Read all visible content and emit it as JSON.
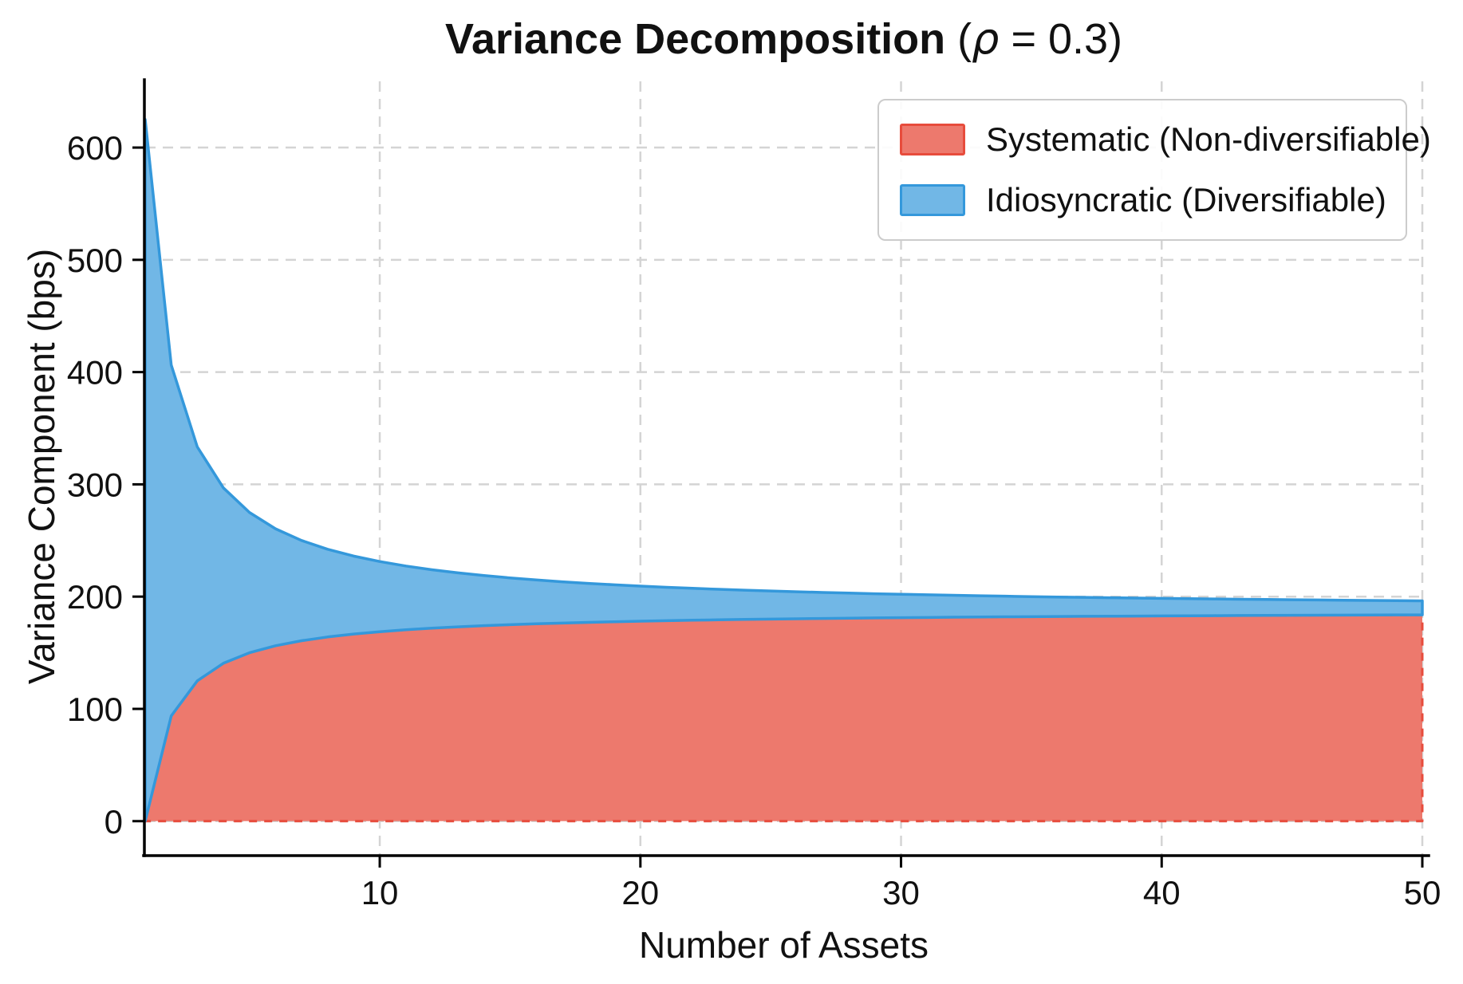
{
  "figure": {
    "title": {
      "main": "Variance Decomposition",
      "open": " (",
      "rho": "ρ",
      "tail": " = 0.3)"
    },
    "xlabel": "Number of Assets",
    "ylabel": "Variance Component (bps)"
  },
  "chart_data": {
    "type": "area",
    "stacked": true,
    "title": "Variance Decomposition (ρ = 0.3)",
    "rho": 0.3,
    "xlabel": "Number of Assets",
    "ylabel": "Variance Component (bps)",
    "xlim": [
      1,
      50
    ],
    "ylim": [
      -30,
      659
    ],
    "x_ticks": [
      10,
      20,
      30,
      40,
      50
    ],
    "y_ticks": [
      0,
      100,
      200,
      300,
      400,
      500,
      600
    ],
    "grid": {
      "show": true,
      "color": "#d4d4d4",
      "style": "dashed"
    },
    "legend_position": "upper right",
    "x": [
      1,
      2,
      3,
      4,
      5,
      6,
      7,
      8,
      9,
      10,
      11,
      12,
      13,
      14,
      15,
      16,
      17,
      18,
      19,
      20,
      21,
      22,
      23,
      24,
      25,
      26,
      27,
      28,
      29,
      30,
      31,
      32,
      33,
      34,
      35,
      36,
      37,
      38,
      39,
      40,
      41,
      42,
      43,
      44,
      45,
      46,
      47,
      48,
      49,
      50
    ],
    "series": [
      {
        "key": "systematic",
        "name": "Systematic (Non-diversifiable)",
        "fill": "#ED796D",
        "edge": "#E74C3C",
        "edge_style": "dashed",
        "values": [
          0,
          93.75,
          125,
          140.63,
          150,
          156.25,
          160.71,
          164.06,
          166.67,
          168.75,
          170.45,
          171.88,
          173.08,
          174.11,
          175,
          175.78,
          176.47,
          177.08,
          177.63,
          178.13,
          178.57,
          178.98,
          179.35,
          179.69,
          180,
          180.29,
          180.56,
          180.8,
          181.03,
          181.25,
          181.45,
          181.64,
          181.82,
          181.99,
          182.14,
          182.29,
          182.43,
          182.57,
          182.69,
          182.81,
          182.93,
          183.04,
          183.14,
          183.24,
          183.33,
          183.42,
          183.51,
          183.59,
          183.67,
          183.75
        ]
      },
      {
        "key": "idiosyncratic",
        "name": "Idiosyncratic (Diversifiable)",
        "fill": "#71B7E6",
        "edge": "#3498DB",
        "edge_style": "solid",
        "values": [
          625,
          312.5,
          208.33,
          156.25,
          125,
          104.17,
          89.29,
          78.13,
          69.44,
          62.5,
          56.82,
          52.08,
          48.08,
          44.64,
          41.67,
          39.06,
          36.76,
          34.72,
          32.89,
          31.25,
          29.76,
          28.41,
          27.17,
          26.04,
          25,
          24.04,
          23.15,
          22.32,
          21.55,
          20.83,
          20.16,
          19.53,
          18.94,
          18.38,
          17.86,
          17.36,
          16.89,
          16.45,
          16.03,
          15.63,
          15.24,
          14.88,
          14.53,
          14.2,
          13.89,
          13.59,
          13.3,
          13.02,
          12.76,
          12.5
        ]
      }
    ]
  }
}
